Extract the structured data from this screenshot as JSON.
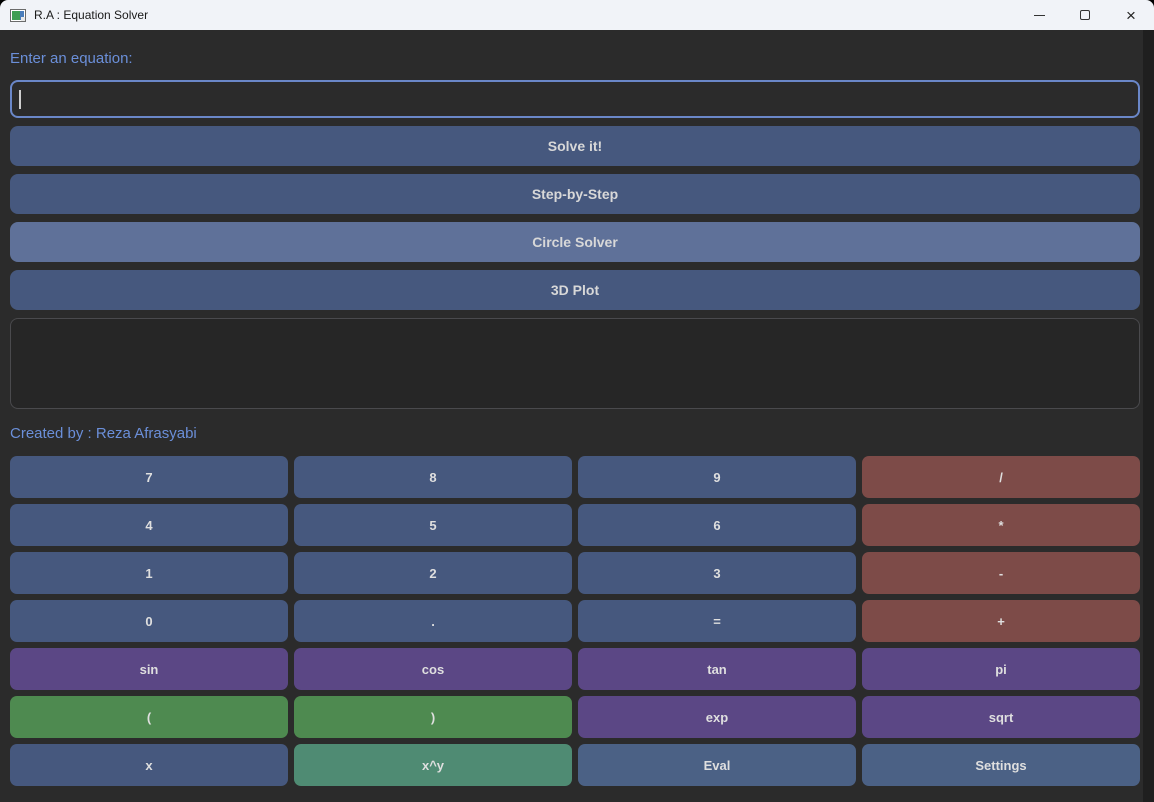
{
  "window": {
    "title": "R.A : Equation Solver",
    "controls": {
      "minimize": "minimize",
      "maximize": "maximize",
      "close_icon": "×"
    }
  },
  "main": {
    "prompt_label": "Enter an equation:",
    "equation_input": {
      "value": "",
      "placeholder": ""
    },
    "action_buttons": [
      {
        "label": "Solve it!",
        "variant": "normal"
      },
      {
        "label": "Step-by-Step",
        "variant": "normal"
      },
      {
        "label": "Circle Solver",
        "variant": "light"
      },
      {
        "label": "3D Plot",
        "variant": "normal"
      }
    ],
    "output_text": "",
    "credit": "Created by : Reza Afrasyabi"
  },
  "keypad": {
    "buttons": [
      {
        "label": "7",
        "name": "7",
        "style": "slate"
      },
      {
        "label": "8",
        "name": "8",
        "style": "slate"
      },
      {
        "label": "9",
        "name": "9",
        "style": "slate"
      },
      {
        "label": "/",
        "name": "divide",
        "style": "brick"
      },
      {
        "label": "4",
        "name": "4",
        "style": "slate"
      },
      {
        "label": "5",
        "name": "5",
        "style": "slate"
      },
      {
        "label": "6",
        "name": "6",
        "style": "slate"
      },
      {
        "label": "*",
        "name": "multiply",
        "style": "brick"
      },
      {
        "label": "1",
        "name": "1",
        "style": "slate"
      },
      {
        "label": "2",
        "name": "2",
        "style": "slate"
      },
      {
        "label": "3",
        "name": "3",
        "style": "slate"
      },
      {
        "label": "-",
        "name": "minus",
        "style": "brick"
      },
      {
        "label": "0",
        "name": "0",
        "style": "slate"
      },
      {
        "label": ".",
        "name": "dot",
        "style": "slate"
      },
      {
        "label": "=",
        "name": "equals",
        "style": "slate"
      },
      {
        "label": "+",
        "name": "plus",
        "style": "brick"
      },
      {
        "label": "sin",
        "name": "sin",
        "style": "purple"
      },
      {
        "label": "cos",
        "name": "cos",
        "style": "purple"
      },
      {
        "label": "tan",
        "name": "tan",
        "style": "purple"
      },
      {
        "label": "pi",
        "name": "pi",
        "style": "purple"
      },
      {
        "label": "(",
        "name": "open-paren",
        "style": "green"
      },
      {
        "label": ")",
        "name": "close-paren",
        "style": "green"
      },
      {
        "label": "exp",
        "name": "exp",
        "style": "purple"
      },
      {
        "label": "sqrt",
        "name": "sqrt",
        "style": "purple"
      },
      {
        "label": "x",
        "name": "x",
        "style": "slate"
      },
      {
        "label": "x^y",
        "name": "power",
        "style": "teal"
      },
      {
        "label": "Eval",
        "name": "eval",
        "style": "steel"
      },
      {
        "label": "Settings",
        "name": "settings",
        "style": "steel"
      }
    ]
  },
  "colors": {
    "accent_text": "#6b8fd9",
    "input_border": "#6a87c8",
    "button_slate": "#46587e",
    "button_slate_light": "#5f7199",
    "button_steel": "#4b6185",
    "button_brick": "#7d4b48",
    "button_purple": "#5b4785",
    "button_green": "#4e8a50",
    "button_teal": "#4f8b73",
    "content_bg": "#2b2b2b",
    "titlebar_bg": "#f1f3f8",
    "button_text": "#d8d8d8"
  }
}
